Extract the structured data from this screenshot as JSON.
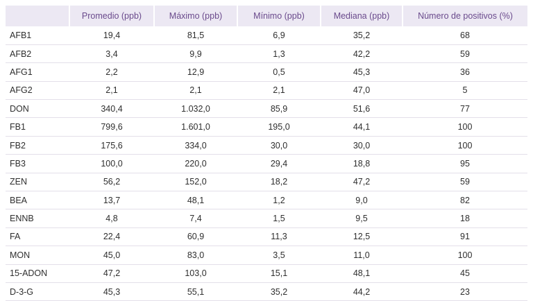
{
  "table": {
    "headers": [
      "",
      "Promedio (ppb)",
      "Máximo (ppb)",
      "Mínimo (ppb)",
      "Mediana (ppb)",
      "Número de positivos (%)"
    ],
    "rows": [
      [
        "AFB1",
        "19,4",
        "81,5",
        "6,9",
        "35,2",
        "68"
      ],
      [
        "AFB2",
        "3,4",
        "9,9",
        "1,3",
        "42,2",
        "59"
      ],
      [
        "AFG1",
        "2,2",
        "12,9",
        "0,5",
        "45,3",
        "36"
      ],
      [
        "AFG2",
        "2,1",
        "2,1",
        "2,1",
        "47,0",
        "5"
      ],
      [
        "DON",
        "340,4",
        "1.032,0",
        "85,9",
        "51,6",
        "77"
      ],
      [
        "FB1",
        "799,6",
        "1.601,0",
        "195,0",
        "44,1",
        "100"
      ],
      [
        "FB2",
        "175,6",
        "334,0",
        "30,0",
        "30,0",
        "100"
      ],
      [
        "FB3",
        "100,0",
        "220,0",
        "29,4",
        "18,8",
        "95"
      ],
      [
        "ZEN",
        "56,2",
        "152,0",
        "18,2",
        "47,2",
        "59"
      ],
      [
        "BEA",
        "13,7",
        "48,1",
        "1,2",
        "9,0",
        "82"
      ],
      [
        "ENNB",
        "4,8",
        "7,4",
        "1,5",
        "9,5",
        "18"
      ],
      [
        "FA",
        "22,4",
        "60,9",
        "11,3",
        "12,5",
        "91"
      ],
      [
        "MON",
        "45,0",
        "83,0",
        "3,5",
        "11,0",
        "100"
      ],
      [
        "15-ADON",
        "47,2",
        "103,0",
        "15,1",
        "48,1",
        "45"
      ],
      [
        "D-3-G",
        "45,3",
        "55,1",
        "35,2",
        "44,2",
        "23"
      ]
    ]
  },
  "colors": {
    "header_bg": "#ece8f3",
    "header_text": "#6a4a8c",
    "row_divider": "#e3dfe9"
  }
}
